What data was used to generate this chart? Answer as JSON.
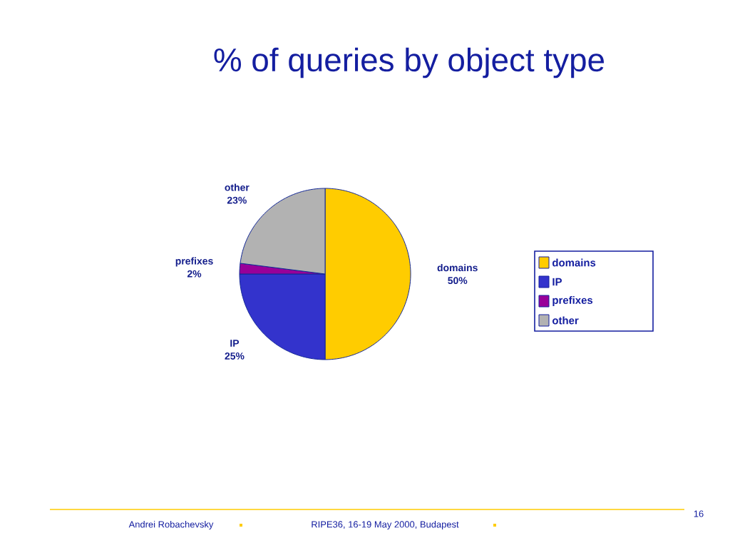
{
  "chart_data": {
    "type": "pie",
    "title": "% of queries by object type",
    "categories": [
      "domains",
      "IP",
      "prefixes",
      "other"
    ],
    "values": [
      50,
      25,
      2,
      23
    ],
    "value_labels": [
      "50%",
      "25%",
      "2%",
      "23%"
    ],
    "colors": [
      "#ffcc00",
      "#3333cc",
      "#990099",
      "#b2b2b2"
    ],
    "legend": "right",
    "annotations": [
      "Andrei Robachevsky",
      "RIPE36, 16-19 May 2000, Budapest",
      "16"
    ]
  }
}
